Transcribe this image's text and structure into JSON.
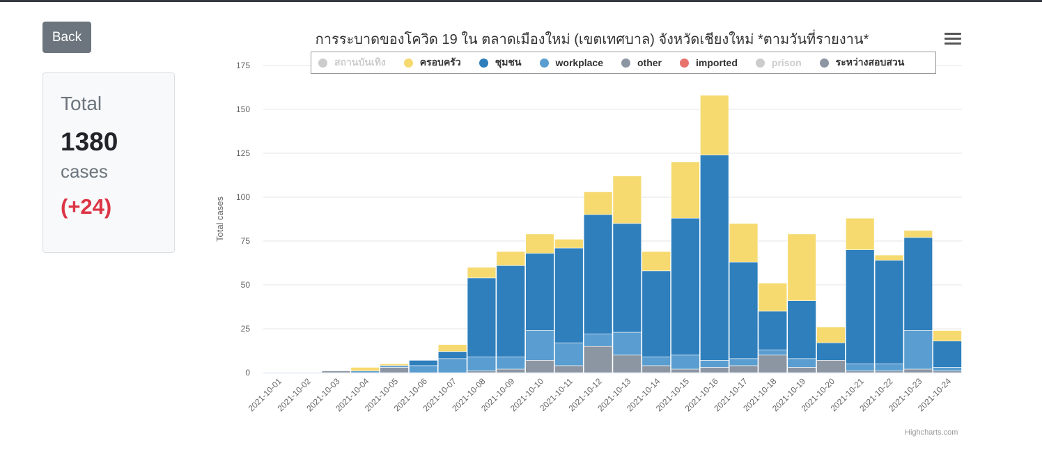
{
  "back_label": "Back",
  "summary": {
    "title": "Total",
    "count": "1380",
    "unit": "cases",
    "delta": "(+24)"
  },
  "credits": "Highcharts.com",
  "chart_data": {
    "type": "bar",
    "stacked": true,
    "title": "การระบาดของโควิด 19 ใน ตลาดเมืองใหม่ (เขตเทศบาล) จังหวัดเชียงใหม่ *ตามวันที่รายงาน*",
    "xlabel": "",
    "ylabel": "Total cases",
    "ylim": [
      0,
      175
    ],
    "yticks": [
      0,
      25,
      50,
      75,
      100,
      125,
      150,
      175
    ],
    "grid": true,
    "legend_position": "top",
    "categories": [
      "2021-10-01",
      "2021-10-02",
      "2021-10-03",
      "2021-10-04",
      "2021-10-05",
      "2021-10-06",
      "2021-10-07",
      "2021-10-08",
      "2021-10-09",
      "2021-10-10",
      "2021-10-11",
      "2021-10-12",
      "2021-10-13",
      "2021-10-14",
      "2021-10-15",
      "2021-10-16",
      "2021-10-17",
      "2021-10-18",
      "2021-10-19",
      "2021-10-20",
      "2021-10-21",
      "2021-10-22",
      "2021-10-23",
      "2021-10-24"
    ],
    "series": [
      {
        "name": "สถานบันเทิง",
        "color": "#cccccc",
        "visible": false,
        "values": [
          0,
          0,
          0,
          0,
          0,
          0,
          0,
          0,
          0,
          0,
          0,
          0,
          0,
          0,
          0,
          0,
          0,
          0,
          0,
          0,
          0,
          0,
          0,
          0
        ]
      },
      {
        "name": "ระหว่างสอบสวน",
        "color": "#8c96a3",
        "visible": true,
        "values": [
          0,
          0,
          1,
          0,
          3,
          0,
          0,
          1,
          2,
          7,
          4,
          15,
          10,
          4,
          2,
          3,
          4,
          10,
          3,
          7,
          1,
          1,
          2,
          1
        ]
      },
      {
        "name": "imported",
        "color": "#e8726c",
        "visible": true,
        "values": [
          0,
          0,
          0,
          0,
          0,
          0,
          0,
          0,
          0,
          0,
          0,
          0,
          0,
          0,
          0,
          0,
          0,
          0,
          0,
          0,
          0,
          0,
          0,
          0
        ]
      },
      {
        "name": "other",
        "color": "#8c96a3",
        "visible": true,
        "values": [
          0,
          0,
          0,
          0,
          0,
          0,
          0,
          0,
          0,
          0,
          0,
          0,
          0,
          0,
          0,
          0,
          0,
          0,
          0,
          0,
          0,
          0,
          0,
          0
        ]
      },
      {
        "name": "workplace",
        "color": "#5a9dd0",
        "visible": true,
        "values": [
          0,
          0,
          0,
          1,
          1,
          4,
          8,
          8,
          7,
          17,
          13,
          7,
          13,
          5,
          8,
          4,
          4,
          3,
          5,
          0,
          4,
          4,
          22,
          2
        ]
      },
      {
        "name": "ชุมชน",
        "color": "#2e7fbc",
        "visible": true,
        "values": [
          0,
          0,
          0,
          0,
          0,
          3,
          4,
          45,
          52,
          44,
          54,
          68,
          62,
          49,
          78,
          117,
          55,
          22,
          33,
          10,
          65,
          59,
          53,
          15
        ]
      },
      {
        "name": "ครอบครัว",
        "color": "#f6da70",
        "visible": true,
        "values": [
          0,
          0,
          0,
          2,
          1,
          0,
          4,
          6,
          8,
          11,
          5,
          13,
          27,
          11,
          32,
          34,
          22,
          16,
          38,
          9,
          18,
          3,
          4,
          6
        ]
      },
      {
        "name": "prison",
        "color": "#cccccc",
        "visible": false,
        "values": [
          0,
          0,
          0,
          0,
          0,
          0,
          0,
          0,
          0,
          0,
          0,
          0,
          0,
          0,
          0,
          0,
          0,
          0,
          0,
          0,
          0,
          0,
          0,
          0
        ]
      }
    ],
    "legend_order": [
      "สถานบันเทิง",
      "ครอบครัว",
      "ชุมชน",
      "workplace",
      "other",
      "imported",
      "prison",
      "ระหว่างสอบสวน"
    ]
  }
}
